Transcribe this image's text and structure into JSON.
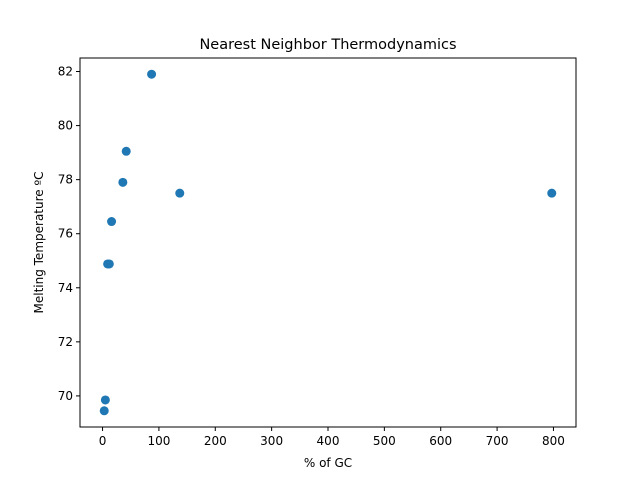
{
  "chart_data": {
    "type": "scatter",
    "title": "Nearest Neighbor Thermodynamics",
    "xlabel": "% of GC",
    "ylabel": "Melting Temperature ºC",
    "xlim": [
      -40,
      840
    ],
    "ylim": [
      68.85,
      82.5
    ],
    "xticks": [
      0,
      100,
      200,
      300,
      400,
      500,
      600,
      700,
      800
    ],
    "yticks": [
      70,
      72,
      74,
      76,
      78,
      80,
      82
    ],
    "grid": false,
    "marker_color": "#1f77b4",
    "points": [
      {
        "x": 87,
        "y": 81.9
      },
      {
        "x": 42,
        "y": 79.05
      },
      {
        "x": 36,
        "y": 77.9
      },
      {
        "x": 137,
        "y": 77.5
      },
      {
        "x": 797,
        "y": 77.5
      },
      {
        "x": 16,
        "y": 76.45
      },
      {
        "x": 9,
        "y": 74.88
      },
      {
        "x": 12,
        "y": 74.88
      },
      {
        "x": 5,
        "y": 69.85
      },
      {
        "x": 3,
        "y": 69.45
      }
    ]
  }
}
